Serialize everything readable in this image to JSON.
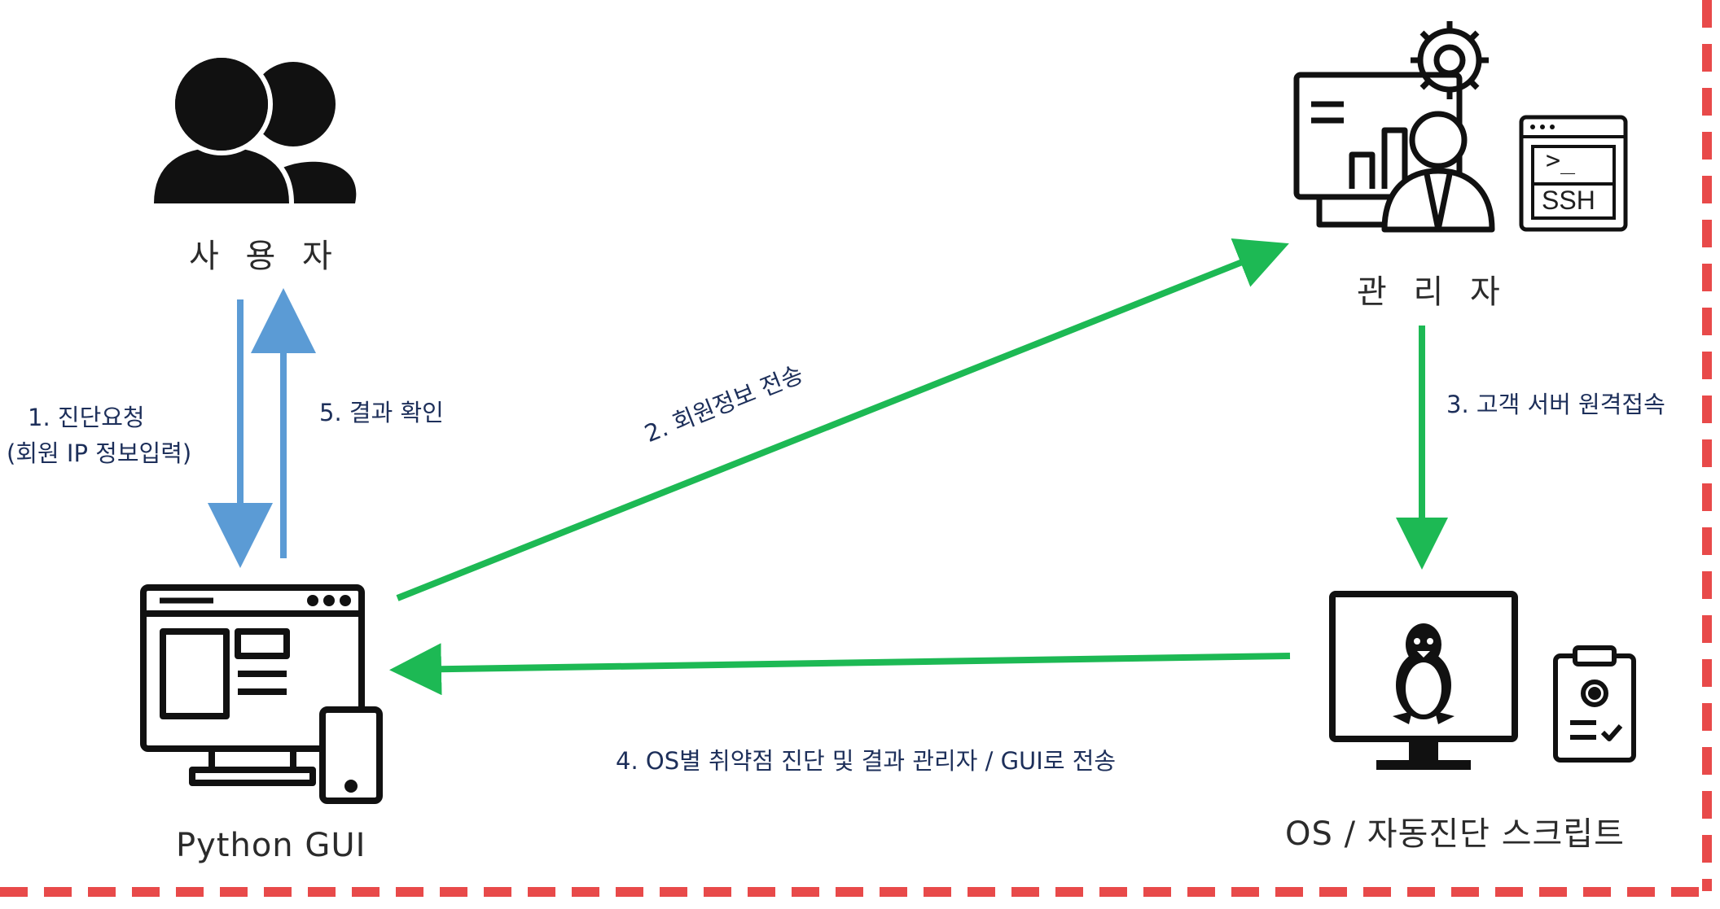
{
  "nodes": {
    "user": {
      "label": "사 용 자"
    },
    "admin": {
      "label": "관 리 자"
    },
    "gui": {
      "label": "Python GUI"
    },
    "os": {
      "label": "OS / 자동진단 스크립트"
    }
  },
  "badges": {
    "ssh": "SSH",
    "terminal": ">_"
  },
  "edges": {
    "e1_line1": "1. 진단요청",
    "e1_line2": "(회원 IP 정보입력)",
    "e2": "2. 회원정보 전송",
    "e3": "3. 고객 서버 원격접속",
    "e4": "4. OS별 취약점 진단 및 결과 관리자 / GUI로 전송",
    "e5": "5. 결과 확인"
  },
  "colors": {
    "blue_arrow": "#5b9bd5",
    "green_arrow": "#1db954",
    "border_dash": "#e84a4a",
    "icon": "#111111"
  }
}
